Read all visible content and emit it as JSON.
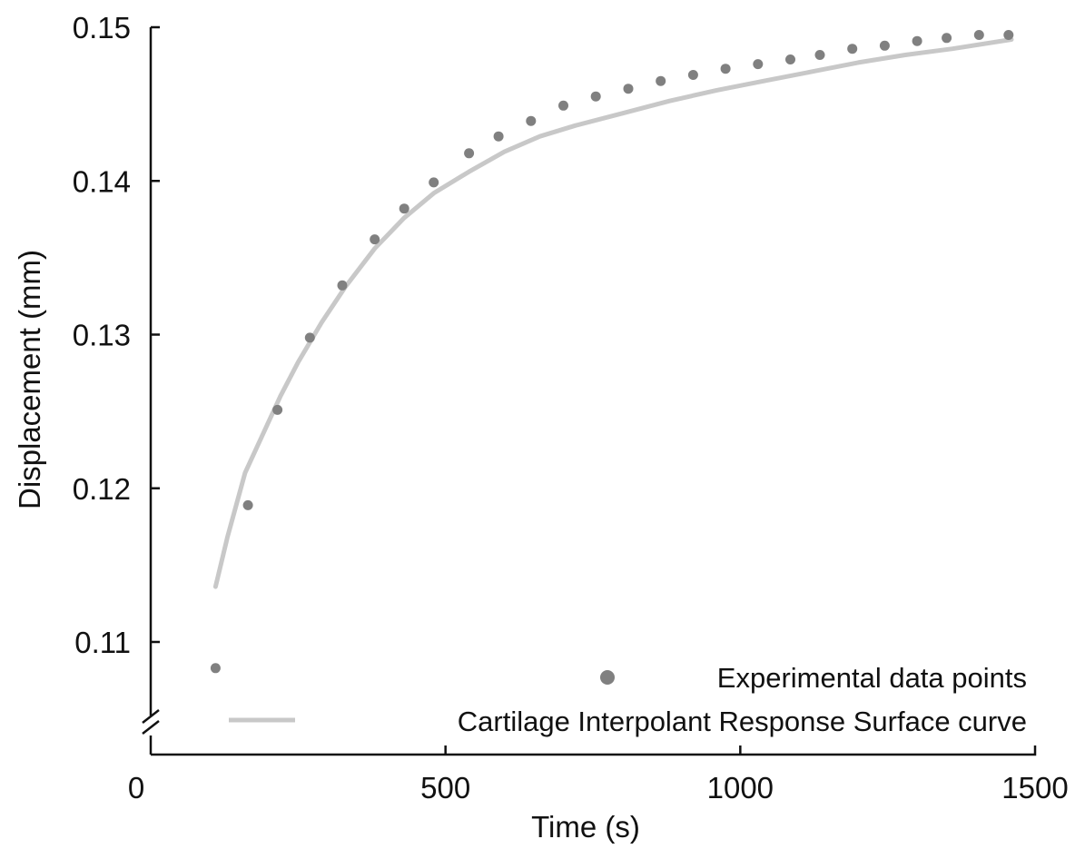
{
  "chart_data": {
    "type": "scatter",
    "title": "",
    "xlabel": "Time (s)",
    "ylabel": "Displacement (mm)",
    "xlim": [
      0,
      1500
    ],
    "ylim": [
      0.105,
      0.15
    ],
    "x_ticks": [
      0,
      500,
      1000,
      1500
    ],
    "x_tick_labels": [
      "0",
      "500",
      "1000",
      "1500"
    ],
    "y_ticks": [
      0.11,
      0.12,
      0.13,
      0.14,
      0.15
    ],
    "y_tick_labels": [
      "0.11",
      "0.12",
      "0.13",
      "0.14",
      "0.15"
    ],
    "y_axis_break": true,
    "grid": false,
    "legend_position": "bottom-right",
    "series": [
      {
        "name": "Experimental data points",
        "kind": "scatter",
        "color": "#808080",
        "x": [
          110,
          165,
          215,
          270,
          325,
          380,
          430,
          480,
          540,
          590,
          645,
          700,
          755,
          810,
          865,
          920,
          975,
          1030,
          1085,
          1135,
          1190,
          1245,
          1300,
          1350,
          1405,
          1455
        ],
        "y": [
          0.1083,
          0.1189,
          0.1251,
          0.1298,
          0.1332,
          0.1362,
          0.1382,
          0.1399,
          0.1418,
          0.1429,
          0.1439,
          0.1449,
          0.1455,
          0.146,
          0.1465,
          0.1469,
          0.1473,
          0.1476,
          0.1479,
          0.1482,
          0.1486,
          0.1488,
          0.1491,
          0.1493,
          0.1495,
          0.1495
        ]
      },
      {
        "name": "Cartilage Interpolant Response Surface curve",
        "kind": "line",
        "color": "#c8c8c8",
        "x": [
          110,
          130,
          160,
          190,
          220,
          250,
          290,
          330,
          380,
          430,
          480,
          540,
          600,
          660,
          720,
          800,
          880,
          960,
          1040,
          1120,
          1200,
          1280,
          1360,
          1460
        ],
        "y": [
          0.1136,
          0.1168,
          0.121,
          0.1235,
          0.126,
          0.1282,
          0.1308,
          0.1331,
          0.1356,
          0.1376,
          0.1392,
          0.1406,
          0.1419,
          0.1429,
          0.1436,
          0.1444,
          0.1452,
          0.1459,
          0.1465,
          0.1471,
          0.1477,
          0.1482,
          0.1486,
          0.1492
        ]
      }
    ]
  }
}
